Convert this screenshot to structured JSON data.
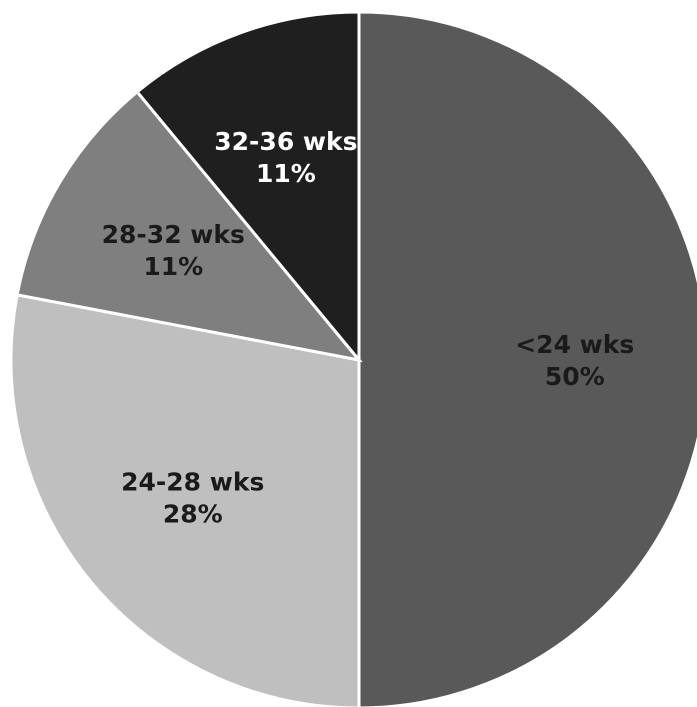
{
  "chart_data": {
    "type": "pie",
    "start_angle_deg": 0,
    "direction": "clockwise",
    "slices": [
      {
        "label": "<24 wks",
        "value": 50,
        "value_label": "50%",
        "color": "#595959",
        "text_color": "#1a1a1a"
      },
      {
        "label": "24-28 wks",
        "value": 28,
        "value_label": "28%",
        "color": "#bfbfbf",
        "text_color": "#1a1a1a"
      },
      {
        "label": "28-32 wks",
        "value": 11,
        "value_label": "11%",
        "color": "#7f7f7f",
        "text_color": "#1a1a1a"
      },
      {
        "label": "32-36 wks",
        "value": 11,
        "value_label": "11%",
        "color": "#1f1f1f",
        "text_color": "#ffffff"
      }
    ]
  }
}
